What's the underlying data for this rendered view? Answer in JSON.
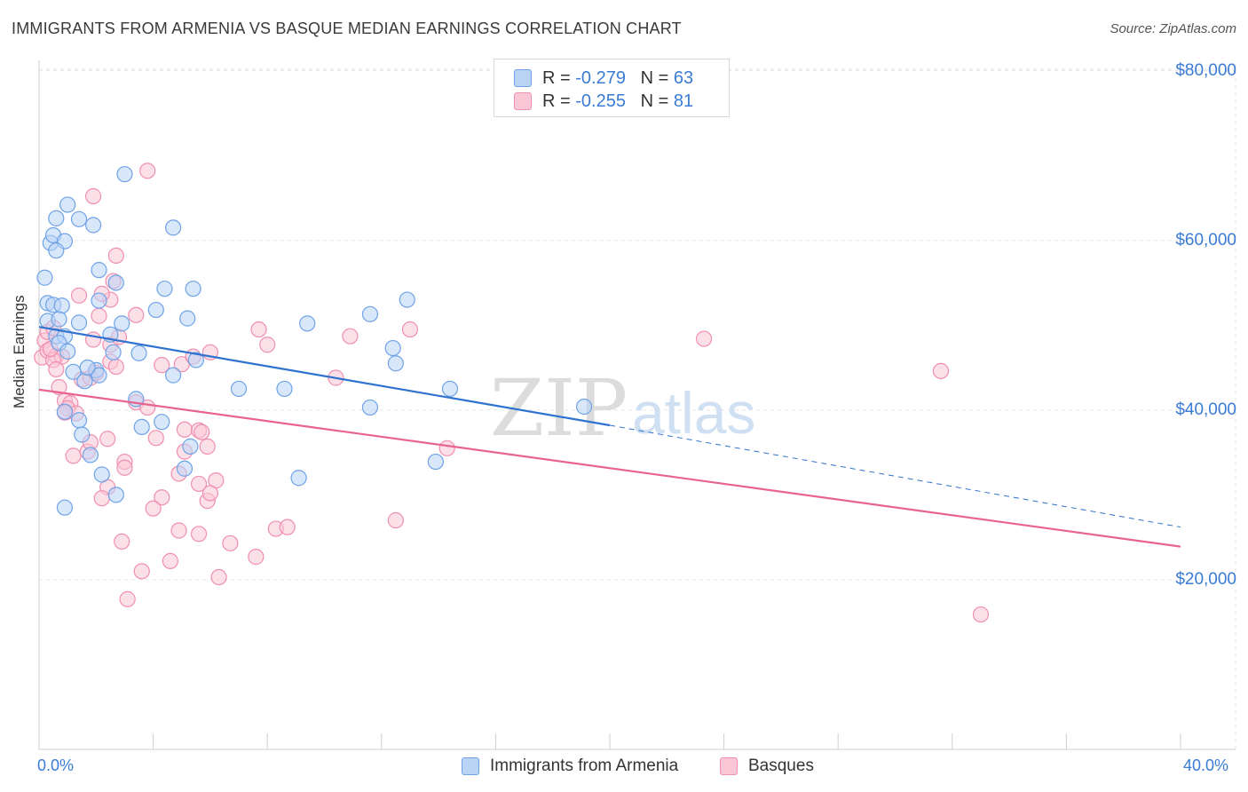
{
  "title": "IMMIGRANTS FROM ARMENIA VS BASQUE MEDIAN EARNINGS CORRELATION CHART",
  "source": "Source: ZipAtlas.com",
  "watermark": {
    "zip": "ZIP",
    "atlas": "atlas"
  },
  "legend_top": [
    {
      "r_label": "R = ",
      "r_value": "-0.279",
      "n_label": "N = ",
      "n_value": "63",
      "color": "#6fa3e6"
    },
    {
      "r_label": "R = ",
      "r_value": "-0.255",
      "n_label": "N = ",
      "n_value": "81",
      "color": "#f08fb0"
    }
  ],
  "colors": {
    "blue_fill": "#b9d3f5",
    "blue_stroke": "#6fa3e6",
    "blue_line": "#2f72cf",
    "pink_fill": "#f9c6d6",
    "pink_stroke": "#f08fb0",
    "pink_line": "#e8648f",
    "axis_text": "#3a7bd5",
    "grid": "#e6e6e6"
  },
  "chart_data": {
    "type": "scatter",
    "title": "IMMIGRANTS FROM ARMENIA VS BASQUE MEDIAN EARNINGS CORRELATION CHART",
    "xlabel": "",
    "ylabel": "Median Earnings",
    "x_unit": "percent",
    "xlim": [
      0,
      40
    ],
    "ylim": [
      0,
      85000
    ],
    "x_tick_labels": [
      "0.0%",
      "40.0%"
    ],
    "y_ticks": [
      20000,
      40000,
      60000,
      80000
    ],
    "y_tick_labels": [
      "$20,000",
      "$40,000",
      "$60,000",
      "$80,000"
    ],
    "grid": true,
    "legend_position": "bottom",
    "series": [
      {
        "name": "Immigrants from Armenia",
        "r": -0.279,
        "n": 63,
        "trend": {
          "x": [
            0,
            20
          ],
          "y": [
            49800,
            38200
          ],
          "dashed_to": [
            40,
            26200
          ]
        },
        "points": [
          [
            0.2,
            55600
          ],
          [
            0.3,
            52600
          ],
          [
            0.5,
            52400
          ],
          [
            0.8,
            52300
          ],
          [
            0.3,
            50500
          ],
          [
            0.7,
            50700
          ],
          [
            1.4,
            50300
          ],
          [
            0.6,
            48700
          ],
          [
            0.9,
            48700
          ],
          [
            0.7,
            47900
          ],
          [
            1.0,
            46900
          ],
          [
            0.4,
            59700
          ],
          [
            0.5,
            60600
          ],
          [
            0.9,
            59900
          ],
          [
            0.6,
            58800
          ],
          [
            0.6,
            62600
          ],
          [
            1.0,
            64200
          ],
          [
            1.4,
            62500
          ],
          [
            1.9,
            61800
          ],
          [
            2.1,
            56500
          ],
          [
            2.7,
            55000
          ],
          [
            2.1,
            52900
          ],
          [
            2.9,
            50200
          ],
          [
            2.5,
            48900
          ],
          [
            2.6,
            46800
          ],
          [
            3.5,
            46700
          ],
          [
            3.0,
            67800
          ],
          [
            4.7,
            61500
          ],
          [
            4.4,
            54300
          ],
          [
            5.4,
            54300
          ],
          [
            5.2,
            50800
          ],
          [
            4.1,
            51800
          ],
          [
            5.5,
            45900
          ],
          [
            4.7,
            44100
          ],
          [
            1.2,
            44500
          ],
          [
            1.6,
            43400
          ],
          [
            2.0,
            44700
          ],
          [
            2.1,
            44100
          ],
          [
            1.7,
            45000
          ],
          [
            3.4,
            41300
          ],
          [
            4.3,
            38600
          ],
          [
            3.6,
            38000
          ],
          [
            0.9,
            39800
          ],
          [
            1.4,
            38800
          ],
          [
            1.5,
            37100
          ],
          [
            1.8,
            34700
          ],
          [
            5.3,
            35700
          ],
          [
            5.1,
            33100
          ],
          [
            2.2,
            32400
          ],
          [
            2.7,
            30000
          ],
          [
            0.9,
            28500
          ],
          [
            7.0,
            42500
          ],
          [
            8.6,
            42500
          ],
          [
            9.4,
            50200
          ],
          [
            9.1,
            32000
          ],
          [
            11.6,
            51300
          ],
          [
            11.6,
            40300
          ],
          [
            12.4,
            47300
          ],
          [
            12.5,
            45500
          ],
          [
            12.9,
            53000
          ],
          [
            13.9,
            33900
          ],
          [
            14.4,
            42500
          ],
          [
            19.1,
            40400
          ]
        ]
      },
      {
        "name": "Basques",
        "r": -0.255,
        "n": 81,
        "trend": {
          "x": [
            0,
            40
          ],
          "y": [
            42400,
            23900
          ]
        },
        "points": [
          [
            0.1,
            46200
          ],
          [
            0.2,
            48200
          ],
          [
            0.3,
            49200
          ],
          [
            0.5,
            49700
          ],
          [
            0.3,
            47000
          ],
          [
            0.6,
            46400
          ],
          [
            0.8,
            46300
          ],
          [
            0.5,
            45900
          ],
          [
            0.4,
            47200
          ],
          [
            0.7,
            42700
          ],
          [
            0.9,
            41100
          ],
          [
            1.1,
            40800
          ],
          [
            1.0,
            40200
          ],
          [
            1.3,
            39600
          ],
          [
            0.9,
            39700
          ],
          [
            1.5,
            43600
          ],
          [
            1.8,
            43800
          ],
          [
            2.0,
            44400
          ],
          [
            2.5,
            45700
          ],
          [
            2.5,
            47700
          ],
          [
            1.9,
            48300
          ],
          [
            2.1,
            51100
          ],
          [
            2.5,
            53000
          ],
          [
            2.2,
            53700
          ],
          [
            1.4,
            53500
          ],
          [
            2.6,
            55200
          ],
          [
            2.7,
            58200
          ],
          [
            1.9,
            65200
          ],
          [
            3.8,
            68200
          ],
          [
            3.4,
            51200
          ],
          [
            2.8,
            48600
          ],
          [
            4.3,
            45300
          ],
          [
            5.0,
            45400
          ],
          [
            5.4,
            46300
          ],
          [
            6.0,
            46800
          ],
          [
            3.4,
            40900
          ],
          [
            4.1,
            36700
          ],
          [
            5.1,
            37700
          ],
          [
            5.6,
            37600
          ],
          [
            2.4,
            36600
          ],
          [
            1.7,
            35100
          ],
          [
            3.0,
            33900
          ],
          [
            3.0,
            33200
          ],
          [
            5.1,
            35100
          ],
          [
            5.9,
            35700
          ],
          [
            4.9,
            32500
          ],
          [
            5.6,
            31300
          ],
          [
            6.2,
            31700
          ],
          [
            2.4,
            30900
          ],
          [
            2.2,
            29600
          ],
          [
            4.3,
            29700
          ],
          [
            5.9,
            29300
          ],
          [
            6.0,
            30200
          ],
          [
            4.0,
            28400
          ],
          [
            4.9,
            25800
          ],
          [
            5.6,
            25400
          ],
          [
            6.7,
            24300
          ],
          [
            2.9,
            24500
          ],
          [
            4.6,
            22200
          ],
          [
            3.6,
            21000
          ],
          [
            6.3,
            20300
          ],
          [
            3.1,
            17700
          ],
          [
            7.6,
            22700
          ],
          [
            8.3,
            26000
          ],
          [
            8.7,
            26200
          ],
          [
            8.0,
            47700
          ],
          [
            7.7,
            49500
          ],
          [
            10.9,
            48700
          ],
          [
            10.4,
            43800
          ],
          [
            13.0,
            49500
          ],
          [
            14.3,
            35500
          ],
          [
            12.5,
            27000
          ],
          [
            23.3,
            48400
          ],
          [
            31.6,
            44600
          ],
          [
            33.0,
            15900
          ],
          [
            1.8,
            36200
          ],
          [
            0.6,
            44800
          ],
          [
            2.7,
            45100
          ],
          [
            3.8,
            40300
          ],
          [
            5.7,
            37400
          ],
          [
            1.2,
            34600
          ]
        ]
      }
    ]
  }
}
